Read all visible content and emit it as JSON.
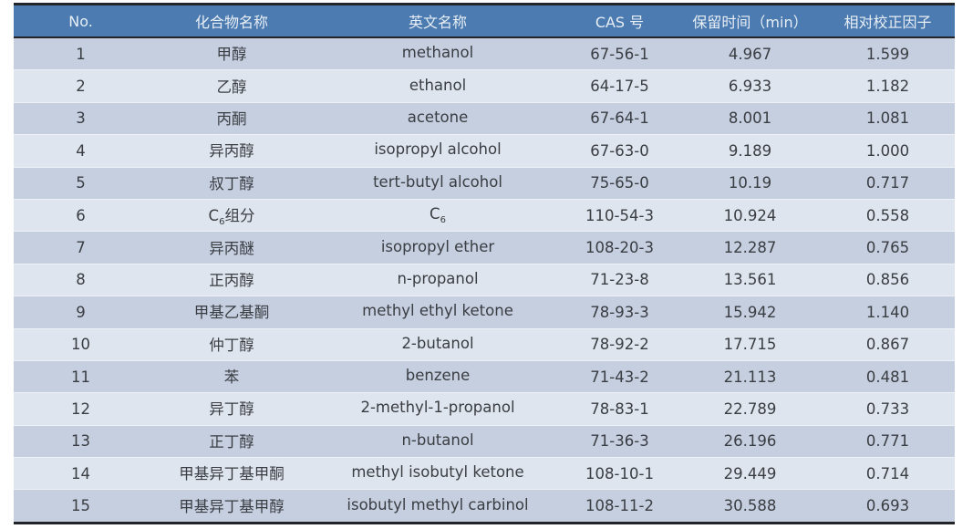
{
  "headers": [
    "No.",
    "化合物名称",
    "英文名称",
    "CAS 号",
    "保留时间（min）",
    "相对校正因子"
  ],
  "colors": {
    "header_bg": "#4b7bb0",
    "row_odd": "#c5cfe0",
    "row_even": "#dfe5ee",
    "border": "#222428"
  },
  "rows": [
    {
      "no": "1",
      "cn": "甲醇",
      "cn_sub": "",
      "cn_suffix": "",
      "en": "methanol",
      "en_sub": "",
      "cas": "67-56-1",
      "rt": "4.967",
      "rf": "1.599"
    },
    {
      "no": "2",
      "cn": "乙醇",
      "cn_sub": "",
      "cn_suffix": "",
      "en": "ethanol",
      "en_sub": "",
      "cas": "64-17-5",
      "rt": "6.933",
      "rf": "1.182"
    },
    {
      "no": "3",
      "cn": "丙酮",
      "cn_sub": "",
      "cn_suffix": "",
      "en": "acetone",
      "en_sub": "",
      "cas": "67-64-1",
      "rt": "8.001",
      "rf": "1.081"
    },
    {
      "no": "4",
      "cn": "异丙醇",
      "cn_sub": "",
      "cn_suffix": "",
      "en": "isopropyl alcohol",
      "en_sub": "",
      "cas": "67-63-0",
      "rt": "9.189",
      "rf": "1.000"
    },
    {
      "no": "5",
      "cn": "叔丁醇",
      "cn_sub": "",
      "cn_suffix": "",
      "en": "tert-butyl alcohol",
      "en_sub": "",
      "cas": "75-65-0",
      "rt": "10.19",
      "rf": "0.717"
    },
    {
      "no": "6",
      "cn": "C",
      "cn_sub": "6",
      "cn_suffix": "组分",
      "en": "C",
      "en_sub": "6",
      "cas": "110-54-3",
      "rt": "10.924",
      "rf": "0.558"
    },
    {
      "no": "7",
      "cn": "异丙醚",
      "cn_sub": "",
      "cn_suffix": "",
      "en": "isopropyl ether",
      "en_sub": "",
      "cas": "108-20-3",
      "rt": "12.287",
      "rf": "0.765"
    },
    {
      "no": "8",
      "cn": "正丙醇",
      "cn_sub": "",
      "cn_suffix": "",
      "en": "n-propanol",
      "en_sub": "",
      "cas": "71-23-8",
      "rt": "13.561",
      "rf": "0.856"
    },
    {
      "no": "9",
      "cn": "甲基乙基酮",
      "cn_sub": "",
      "cn_suffix": "",
      "en": "methyl ethyl ketone",
      "en_sub": "",
      "cas": "78-93-3",
      "rt": "15.942",
      "rf": "1.140"
    },
    {
      "no": "10",
      "cn": "仲丁醇",
      "cn_sub": "",
      "cn_suffix": "",
      "en": "2-butanol",
      "en_sub": "",
      "cas": "78-92-2",
      "rt": "17.715",
      "rf": "0.867"
    },
    {
      "no": "11",
      "cn": "苯",
      "cn_sub": "",
      "cn_suffix": "",
      "en": "benzene",
      "en_sub": "",
      "cas": "71-43-2",
      "rt": "21.113",
      "rf": "0.481"
    },
    {
      "no": "12",
      "cn": "异丁醇",
      "cn_sub": "",
      "cn_suffix": "",
      "en": "2-methyl-1-propanol",
      "en_sub": "",
      "cas": "78-83-1",
      "rt": "22.789",
      "rf": "0.733"
    },
    {
      "no": "13",
      "cn": "正丁醇",
      "cn_sub": "",
      "cn_suffix": "",
      "en": "n-butanol",
      "en_sub": "",
      "cas": "71-36-3",
      "rt": "26.196",
      "rf": "0.771"
    },
    {
      "no": "14",
      "cn": "甲基异丁基甲酮",
      "cn_sub": "",
      "cn_suffix": "",
      "en": "methyl isobutyl ketone",
      "en_sub": "",
      "cas": "108-10-1",
      "rt": "29.449",
      "rf": "0.714"
    },
    {
      "no": "15",
      "cn": "甲基异丁基甲醇",
      "cn_sub": "",
      "cn_suffix": "",
      "en": "isobutyl methyl carbinol",
      "en_sub": "",
      "cas": "108-11-2",
      "rt": "30.588",
      "rf": "0.693"
    }
  ]
}
